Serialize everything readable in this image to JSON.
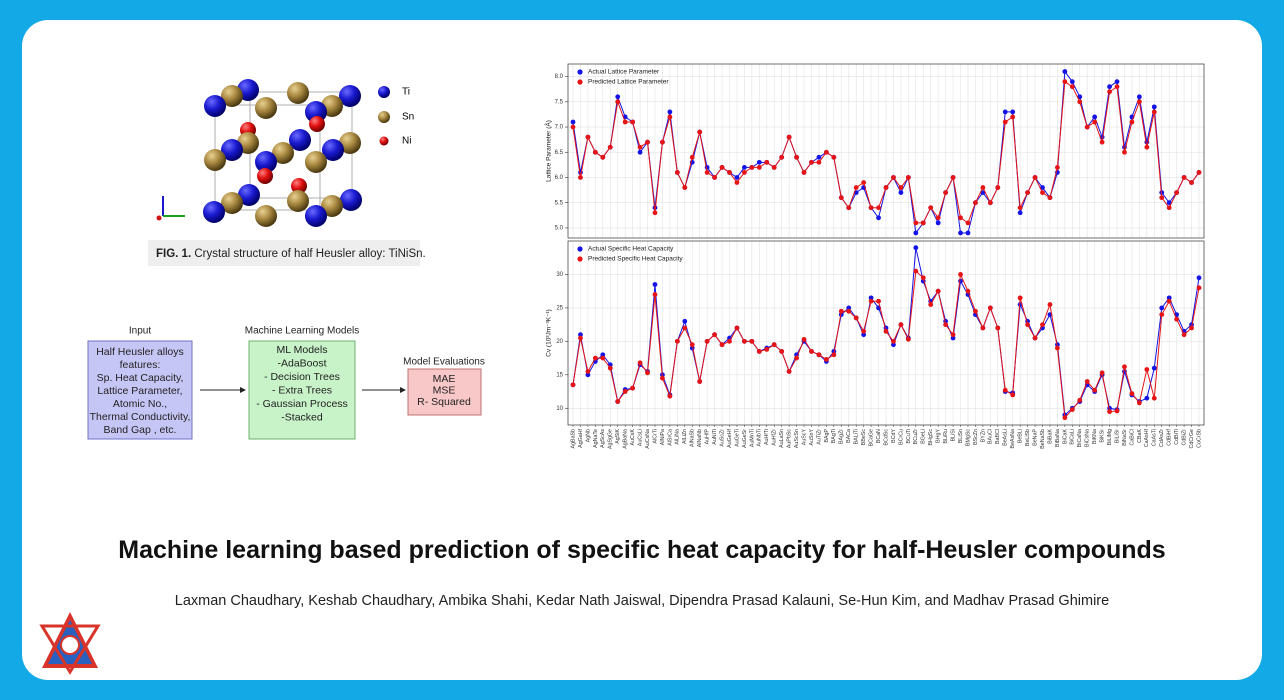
{
  "figure": {
    "legend": [
      "Ti",
      "Sn",
      "Ni"
    ],
    "caption_label": "FIG. 1.",
    "caption_text": "Crystal structure of half Heusler alloy: TiNiSn."
  },
  "flowchart": {
    "input": {
      "heading": "Input",
      "lines": [
        "Half Heusler alloys",
        "features:",
        "Sp. Heat Capacity,",
        "Lattice Parameter,",
        "Atomic No.,",
        "Thermal Conductivity,",
        "Band Gap , etc."
      ]
    },
    "models": {
      "heading": "Machine Learning Models",
      "lines": [
        "ML Models",
        "-AdaBoost",
        "- Decision Trees",
        "- Extra Trees",
        "- Gaussian Process",
        "-Stacked"
      ]
    },
    "evaluation": {
      "heading": "Model Evaluations",
      "lines": [
        "MAE",
        "MSE",
        "R- Squared"
      ]
    }
  },
  "chart_data": [
    {
      "type": "line",
      "y_label": "Lattice Parameter (Å)",
      "ylim": [
        4.8,
        8.25
      ],
      "yticks": [
        {
          "value": 5,
          "label": "5.0"
        },
        {
          "value": 5.5,
          "label": "5.5"
        },
        {
          "value": 6,
          "label": "6.0"
        },
        {
          "value": 6.5,
          "label": "6.5"
        },
        {
          "value": 7,
          "label": "7.0"
        },
        {
          "value": 7.5,
          "label": "7.5"
        },
        {
          "value": 8,
          "label": "8.0"
        }
      ],
      "grid": true,
      "legend": "upper left",
      "series": [
        {
          "name": "Actual Lattice Parameter",
          "color": "#1414e6",
          "values": [
            7.1,
            6.1,
            6.8,
            6.5,
            6.4,
            6.6,
            7.6,
            7.2,
            7.1,
            6.5,
            6.7,
            5.4,
            6.7,
            7.3,
            6.1,
            5.8,
            6.3,
            6.9,
            6.2,
            6.0,
            6.2,
            6.1,
            6.0,
            6.2,
            6.2,
            6.3,
            6.3,
            6.2,
            6.4,
            6.8,
            6.4,
            6.1,
            6.3,
            6.4,
            6.5,
            6.4,
            5.6,
            5.4,
            5.7,
            5.8,
            5.4,
            5.2,
            5.8,
            6.0,
            5.7,
            6.0,
            4.9,
            5.1,
            5.4,
            5.1,
            5.7,
            6.0,
            4.9,
            4.9,
            5.5,
            5.7,
            5.5,
            5.8,
            7.3,
            7.3,
            5.3,
            5.7,
            6.0,
            5.8,
            5.6,
            6.1,
            8.1,
            7.9,
            7.6,
            7.0,
            7.2,
            6.8,
            7.8,
            7.9,
            6.6,
            7.2,
            7.6,
            6.7,
            7.4,
            5.7,
            5.5,
            5.7,
            6.0,
            5.9,
            6.1
          ]
        },
        {
          "name": "Predicted Lattice Parameter",
          "color": "#e61414",
          "values": [
            7.0,
            6.0,
            6.8,
            6.5,
            6.4,
            6.6,
            7.5,
            7.1,
            7.1,
            6.6,
            6.7,
            5.3,
            6.7,
            7.2,
            6.1,
            5.8,
            6.4,
            6.9,
            6.1,
            6.0,
            6.2,
            6.1,
            5.9,
            6.1,
            6.2,
            6.2,
            6.3,
            6.2,
            6.4,
            6.8,
            6.4,
            6.1,
            6.3,
            6.3,
            6.5,
            6.4,
            5.6,
            5.4,
            5.8,
            5.9,
            5.4,
            5.4,
            5.8,
            6.0,
            5.8,
            6.0,
            5.1,
            5.1,
            5.4,
            5.2,
            5.7,
            6.0,
            5.2,
            5.1,
            5.5,
            5.8,
            5.5,
            5.8,
            7.1,
            7.2,
            5.4,
            5.7,
            6.0,
            5.7,
            5.6,
            6.2,
            7.9,
            7.8,
            7.5,
            7.0,
            7.1,
            6.7,
            7.7,
            7.8,
            6.5,
            7.1,
            7.5,
            6.6,
            7.3,
            5.6,
            5.4,
            5.7,
            6.0,
            5.9,
            6.1
          ]
        }
      ]
    },
    {
      "type": "line",
      "y_label": "Cv (10³Jm⁻³K⁻¹)",
      "ylim": [
        7.5,
        35
      ],
      "yticks": [
        10,
        15,
        20,
        25,
        30
      ],
      "grid": true,
      "legend": "upper left",
      "categories": [
        "AgBaSb",
        "AgGaHf",
        "AgNb",
        "AgNaTe",
        "AgScAs",
        "AgSgGe",
        "AgSiK",
        "AgBaNa",
        "AuCsK",
        "AuCsLi",
        "AuCsNa",
        "AlCrTi",
        "AlNiPa",
        "AlSrCa",
        "AlLiNa",
        "AlLiZn",
        "AlNaSb",
        "AlNaNb",
        "AuHfP",
        "AuNiTi",
        "AuScZr",
        "AuGeHf",
        "AuGeTi",
        "AuGeSr",
        "AuMnTi",
        "AuNbTi",
        "AuHfTi",
        "AuHfZr",
        "AuLaSn",
        "AuPbSc",
        "AuScSn",
        "AuScY",
        "AuSnY",
        "AuTiZr",
        "BAgP",
        "BAgTi",
        "BAgZr",
        "BACa",
        "BALiTi",
        "BBeSc",
        "BCaGe",
        "BCaN",
        "BCdSc",
        "BCdY",
        "BCrCu",
        "BCuTi",
        "BCuZr",
        "BGeLi",
        "BHgSc",
        "BHgY",
        "BLiRu",
        "BLiSi",
        "BLiSn",
        "BMgSc",
        "BScZn",
        "BYZn",
        "BAuCl",
        "BaBCl",
        "BeAsLi",
        "BeAsNa",
        "BeBLi",
        "BeLiSb",
        "BeNaP",
        "BeNaSb",
        "BiBaK",
        "BiBaNa",
        "BiCaK",
        "BiCaLi",
        "BiCaNa",
        "BiCsNa",
        "BiKNa",
        "BiKSr",
        "BiLiMg",
        "BiLiSr",
        "BiNaSr",
        "CaBiCl",
        "CBaK",
        "CaAsHf",
        "CaAsTi",
        "CdAsZr",
        "CdBiHf",
        "CdBiTi",
        "CdBiZr",
        "CdCrGe",
        "CoCrSb"
      ],
      "series": [
        {
          "name": "Actual Specific Heat Capacity",
          "color": "#1414e6",
          "values": [
            13.5,
            21,
            15,
            17,
            18,
            16.5,
            11,
            12.8,
            13,
            16.5,
            15.5,
            28.5,
            15,
            12,
            20,
            23,
            19,
            14,
            20,
            21,
            19.5,
            20.5,
            22,
            20,
            20,
            18.5,
            19,
            19.5,
            18.5,
            15.5,
            18,
            20,
            18.5,
            18,
            17,
            18.5,
            24,
            25,
            23.5,
            21,
            26.5,
            25,
            22,
            19.5,
            22.5,
            20.5,
            34,
            29,
            26,
            27.5,
            23,
            20.5,
            29,
            27,
            24,
            22,
            25,
            22,
            12.5,
            12.3,
            25.5,
            23,
            20.5,
            22,
            24,
            19.5,
            9,
            10,
            11,
            13.5,
            12.5,
            15,
            10,
            9.8,
            15.5,
            12,
            11,
            11.5,
            16,
            25,
            26.5,
            24,
            21.5,
            22.5,
            29.5
          ]
        },
        {
          "name": "Predicted Specific Heat Capacity",
          "color": "#e61414",
          "values": [
            13.5,
            20.5,
            15.5,
            17.5,
            17.5,
            16,
            11,
            12.5,
            13,
            16.8,
            15.3,
            27,
            14.5,
            11.8,
            20,
            22,
            19.5,
            14,
            20,
            21,
            19.5,
            20,
            22,
            20,
            20,
            18.5,
            18.8,
            19.5,
            18.5,
            15.5,
            17.5,
            20.3,
            18.5,
            18,
            17.3,
            18,
            24.5,
            24.5,
            23.5,
            21.5,
            26,
            26,
            21.5,
            20,
            22.5,
            20.3,
            30.5,
            29.5,
            25.5,
            27.5,
            22.5,
            21,
            30,
            27.5,
            24.5,
            22,
            25,
            22,
            12.7,
            12,
            26.5,
            22.5,
            20.5,
            22.5,
            25.5,
            19,
            8.6,
            9.8,
            11.2,
            14,
            12.7,
            15.3,
            9.5,
            9.6,
            16.2,
            12.2,
            10.8,
            15.8,
            11.5,
            24,
            26,
            23.3,
            21,
            22,
            28
          ]
        }
      ]
    }
  ],
  "title": "Machine learning based prediction of specific heat capacity for half-Heusler compounds",
  "authors": "Laxman Chaudhary, Keshab Chaudhary,  Ambika Shahi, Kedar Nath Jaiswal,  Dipendra Prasad Kalauni, Se-Hun Kim, and Madhav Prasad Ghimire"
}
